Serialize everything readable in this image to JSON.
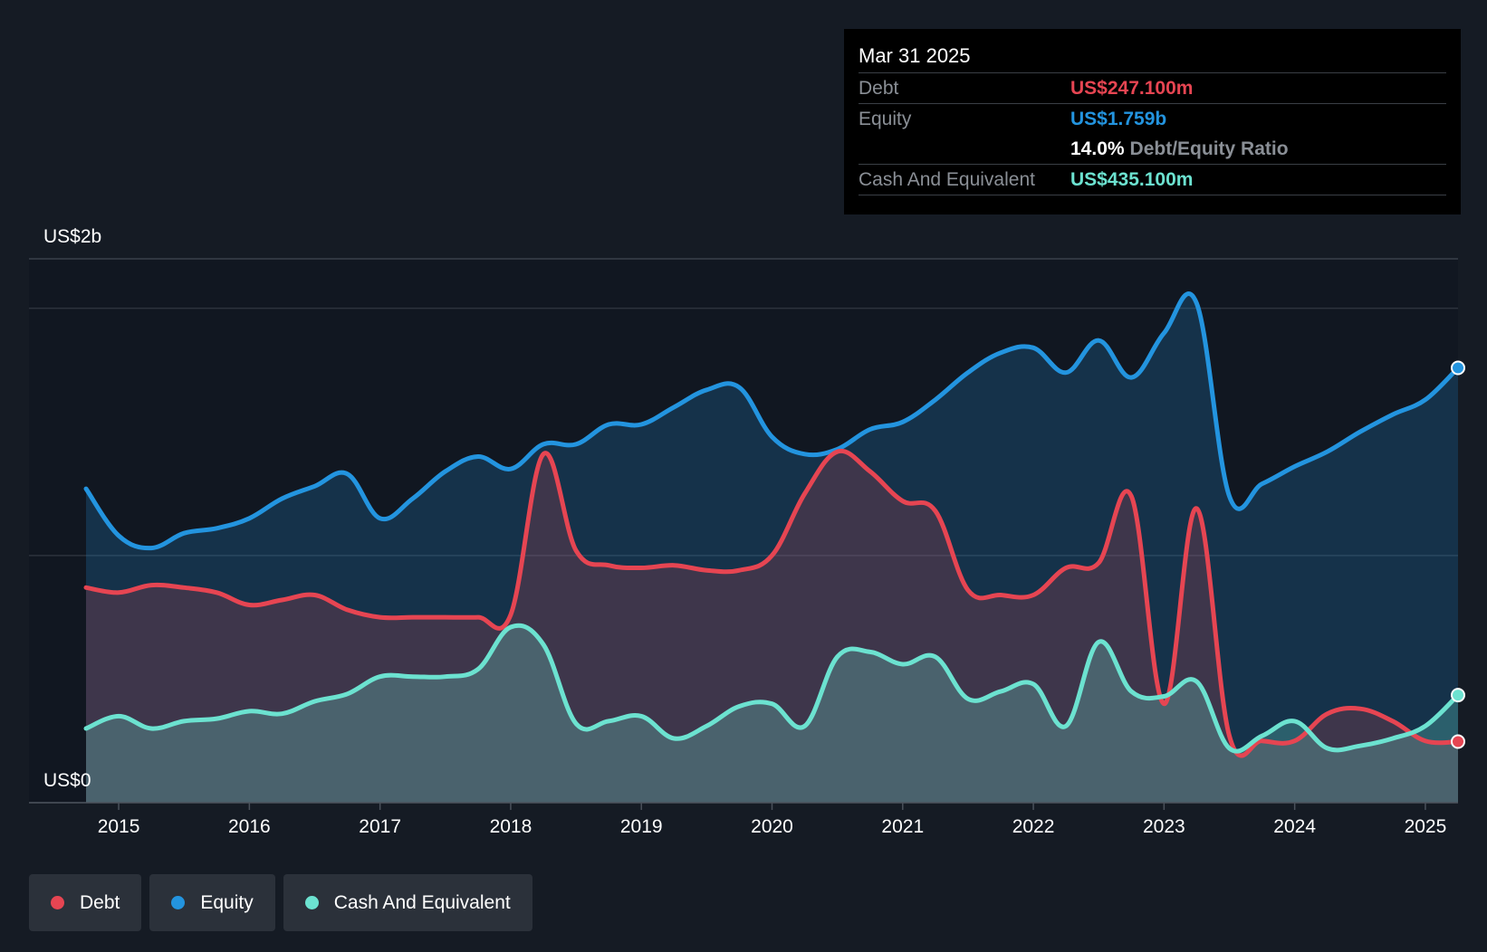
{
  "tooltip": {
    "date": "Mar 31 2025",
    "debt_label": "Debt",
    "debt_value": "US$247.100m",
    "equity_label": "Equity",
    "equity_value": "US$1.759b",
    "ratio_value": "14.0%",
    "ratio_label": "Debt/Equity Ratio",
    "cash_label": "Cash And Equivalent",
    "cash_value": "US$435.100m"
  },
  "legend": [
    {
      "label": "Debt",
      "color": "#e64552"
    },
    {
      "label": "Equity",
      "color": "#2394df"
    },
    {
      "label": "Cash And Equivalent",
      "color": "#6ce2d0"
    }
  ],
  "colors": {
    "debt": "#e64552",
    "equity": "#2394df",
    "cash": "#6ce2d0",
    "background": "#151b24",
    "plot_background": "#111721"
  },
  "chart_data": {
    "type": "area",
    "title": "",
    "xlabel": "",
    "ylabel": "",
    "y_top_label": "US$2b",
    "y_bottom_label": "US$0",
    "ylim": [
      0,
      2.2
    ],
    "xlim": [
      2014.75,
      2025.25
    ],
    "x_ticks": [
      "2015",
      "2016",
      "2017",
      "2018",
      "2019",
      "2020",
      "2021",
      "2022",
      "2023",
      "2024",
      "2025"
    ],
    "grid": true,
    "legend_position": "bottom-left",
    "series": [
      {
        "name": "Equity",
        "points": [
          [
            2014.75,
            1.27
          ],
          [
            2015.0,
            1.08
          ],
          [
            2015.25,
            1.03
          ],
          [
            2015.5,
            1.09
          ],
          [
            2015.75,
            1.11
          ],
          [
            2016.0,
            1.15
          ],
          [
            2016.25,
            1.23
          ],
          [
            2016.5,
            1.28
          ],
          [
            2016.75,
            1.33
          ],
          [
            2017.0,
            1.15
          ],
          [
            2017.25,
            1.23
          ],
          [
            2017.5,
            1.34
          ],
          [
            2017.75,
            1.4
          ],
          [
            2018.0,
            1.35
          ],
          [
            2018.25,
            1.45
          ],
          [
            2018.5,
            1.45
          ],
          [
            2018.75,
            1.53
          ],
          [
            2019.0,
            1.53
          ],
          [
            2019.25,
            1.6
          ],
          [
            2019.5,
            1.67
          ],
          [
            2019.75,
            1.68
          ],
          [
            2020.0,
            1.48
          ],
          [
            2020.25,
            1.41
          ],
          [
            2020.5,
            1.43
          ],
          [
            2020.75,
            1.51
          ],
          [
            2021.0,
            1.54
          ],
          [
            2021.25,
            1.63
          ],
          [
            2021.5,
            1.74
          ],
          [
            2021.75,
            1.82
          ],
          [
            2022.0,
            1.84
          ],
          [
            2022.25,
            1.74
          ],
          [
            2022.5,
            1.87
          ],
          [
            2022.75,
            1.72
          ],
          [
            2023.0,
            1.9
          ],
          [
            2023.25,
            2.02
          ],
          [
            2023.5,
            1.24
          ],
          [
            2023.75,
            1.29
          ],
          [
            2024.0,
            1.36
          ],
          [
            2024.25,
            1.42
          ],
          [
            2024.5,
            1.5
          ],
          [
            2024.75,
            1.57
          ],
          [
            2025.0,
            1.63
          ],
          [
            2025.25,
            1.759
          ]
        ]
      },
      {
        "name": "Debt",
        "points": [
          [
            2014.75,
            0.87
          ],
          [
            2015.0,
            0.85
          ],
          [
            2015.25,
            0.88
          ],
          [
            2015.5,
            0.87
          ],
          [
            2015.75,
            0.85
          ],
          [
            2016.0,
            0.8
          ],
          [
            2016.25,
            0.82
          ],
          [
            2016.5,
            0.84
          ],
          [
            2016.75,
            0.78
          ],
          [
            2017.0,
            0.75
          ],
          [
            2017.25,
            0.75
          ],
          [
            2017.5,
            0.75
          ],
          [
            2017.75,
            0.75
          ],
          [
            2018.0,
            0.76
          ],
          [
            2018.25,
            1.41
          ],
          [
            2018.5,
            1.02
          ],
          [
            2018.75,
            0.96
          ],
          [
            2019.0,
            0.95
          ],
          [
            2019.25,
            0.96
          ],
          [
            2019.5,
            0.94
          ],
          [
            2019.75,
            0.94
          ],
          [
            2020.0,
            1.0
          ],
          [
            2020.25,
            1.25
          ],
          [
            2020.5,
            1.42
          ],
          [
            2020.75,
            1.34
          ],
          [
            2021.0,
            1.22
          ],
          [
            2021.25,
            1.18
          ],
          [
            2021.5,
            0.86
          ],
          [
            2021.75,
            0.84
          ],
          [
            2022.0,
            0.84
          ],
          [
            2022.25,
            0.95
          ],
          [
            2022.5,
            0.97
          ],
          [
            2022.75,
            1.24
          ],
          [
            2023.0,
            0.4
          ],
          [
            2023.25,
            1.19
          ],
          [
            2023.5,
            0.27
          ],
          [
            2023.75,
            0.25
          ],
          [
            2024.0,
            0.25
          ],
          [
            2024.25,
            0.36
          ],
          [
            2024.5,
            0.38
          ],
          [
            2024.75,
            0.33
          ],
          [
            2025.0,
            0.25
          ],
          [
            2025.25,
            0.2471
          ]
        ]
      },
      {
        "name": "Cash And Equivalent",
        "points": [
          [
            2014.75,
            0.3
          ],
          [
            2015.0,
            0.35
          ],
          [
            2015.25,
            0.3
          ],
          [
            2015.5,
            0.33
          ],
          [
            2015.75,
            0.34
          ],
          [
            2016.0,
            0.37
          ],
          [
            2016.25,
            0.36
          ],
          [
            2016.5,
            0.41
          ],
          [
            2016.75,
            0.44
          ],
          [
            2017.0,
            0.51
          ],
          [
            2017.25,
            0.51
          ],
          [
            2017.5,
            0.51
          ],
          [
            2017.75,
            0.54
          ],
          [
            2018.0,
            0.71
          ],
          [
            2018.25,
            0.64
          ],
          [
            2018.5,
            0.32
          ],
          [
            2018.75,
            0.33
          ],
          [
            2019.0,
            0.35
          ],
          [
            2019.25,
            0.26
          ],
          [
            2019.5,
            0.31
          ],
          [
            2019.75,
            0.39
          ],
          [
            2020.0,
            0.4
          ],
          [
            2020.25,
            0.31
          ],
          [
            2020.5,
            0.59
          ],
          [
            2020.75,
            0.61
          ],
          [
            2021.0,
            0.56
          ],
          [
            2021.25,
            0.59
          ],
          [
            2021.5,
            0.42
          ],
          [
            2021.75,
            0.45
          ],
          [
            2022.0,
            0.48
          ],
          [
            2022.25,
            0.31
          ],
          [
            2022.5,
            0.65
          ],
          [
            2022.75,
            0.45
          ],
          [
            2023.0,
            0.43
          ],
          [
            2023.25,
            0.49
          ],
          [
            2023.5,
            0.22
          ],
          [
            2023.75,
            0.27
          ],
          [
            2024.0,
            0.33
          ],
          [
            2024.25,
            0.22
          ],
          [
            2024.5,
            0.23
          ],
          [
            2024.75,
            0.26
          ],
          [
            2025.0,
            0.31
          ],
          [
            2025.25,
            0.4351
          ]
        ]
      }
    ]
  }
}
